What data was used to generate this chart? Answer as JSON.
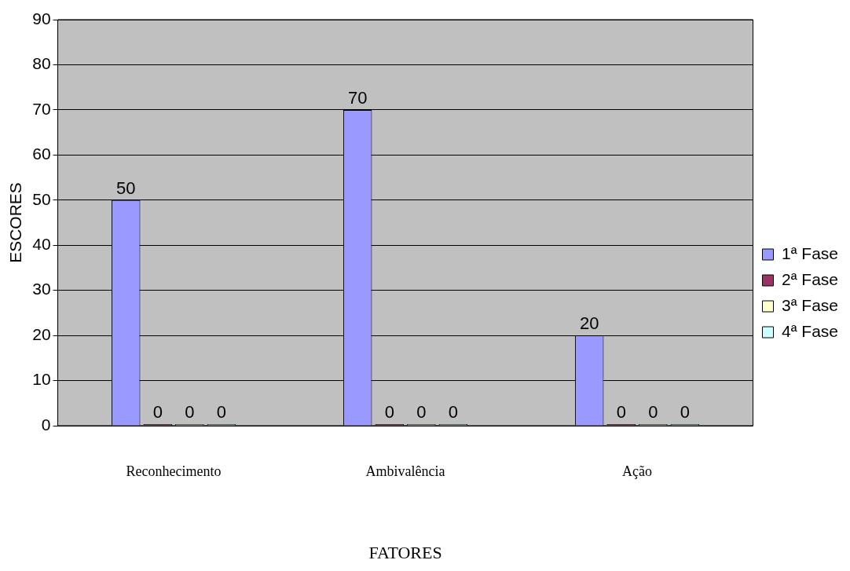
{
  "chart_data": {
    "type": "bar",
    "xlabel": "FATORES",
    "ylabel": "ESCORES",
    "categories": [
      "Reconhecimento",
      "Ambivalência",
      "Ação"
    ],
    "series": [
      {
        "name": "1ª Fase",
        "color": "#9999ff",
        "values": [
          50,
          70,
          20
        ]
      },
      {
        "name": "2ª Fase",
        "color": "#993366",
        "values": [
          0,
          0,
          0
        ]
      },
      {
        "name": "3ª Fase",
        "color": "#ffffcc",
        "values": [
          0,
          0,
          0
        ]
      },
      {
        "name": "4ª Fase",
        "color": "#ccffff",
        "values": [
          0,
          0,
          0
        ]
      }
    ],
    "ylim": [
      0,
      90
    ],
    "yticks": [
      0,
      10,
      20,
      30,
      40,
      50,
      60,
      70,
      80,
      90
    ],
    "grid": "y",
    "legend": "right",
    "data_labels": true
  }
}
